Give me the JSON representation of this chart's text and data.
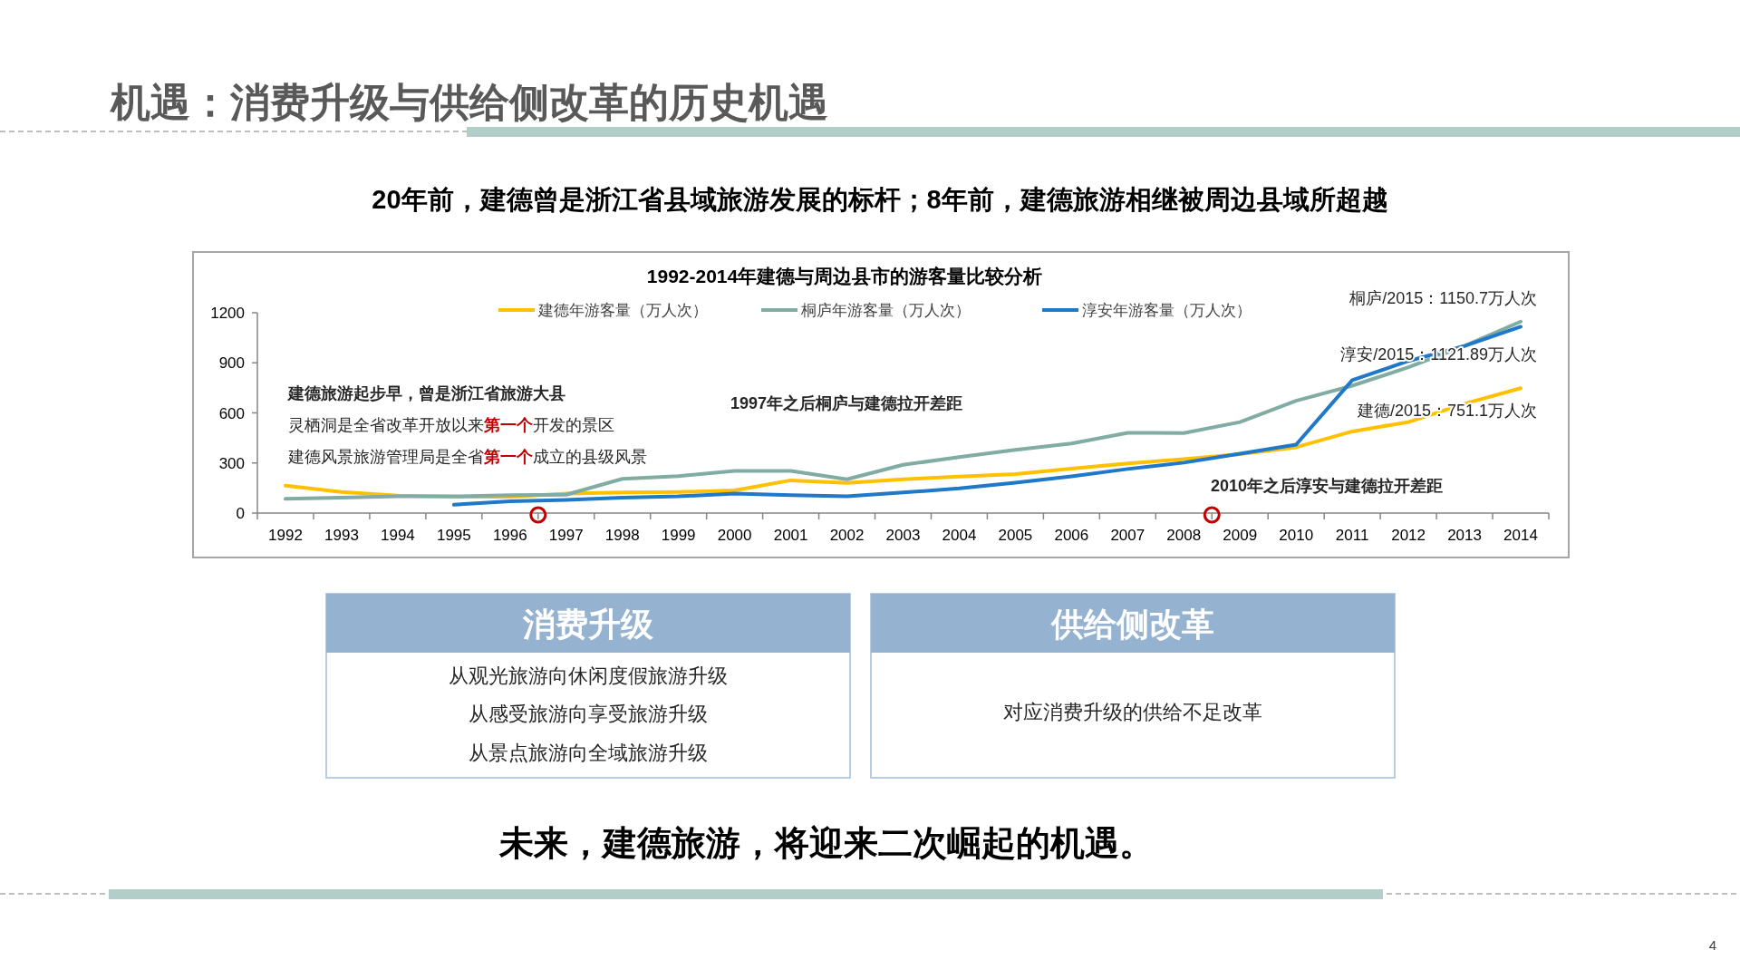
{
  "chart_data": {
    "type": "line",
    "title": "1992-2014年建德与周边县市的游客量比较分析",
    "subtitle": "20年前，建德曾是浙江省县域旅游发展的标杆；8年前，建德旅游相继被周边县域所超越",
    "categories": [
      "1992",
      "1993",
      "1994",
      "1995",
      "1996",
      "1997",
      "1998",
      "1999",
      "2000",
      "2001",
      "2002",
      "2003",
      "2004",
      "2005",
      "2006",
      "2007",
      "2008",
      "2009",
      "2010",
      "2011",
      "2012",
      "2013",
      "2014"
    ],
    "series": [
      {
        "name": "建德年游客量（万人次）",
        "color": "#ffc000",
        "values": [
          164,
          126,
          104,
          98,
          98,
          117,
          123,
          126,
          136,
          196,
          180,
          202,
          218,
          233,
          266,
          297,
          323,
          353,
          394,
          489,
          545,
          655,
          748
        ]
      },
      {
        "name": "桐庐年游客量（万人次）",
        "color": "#80aca4",
        "values": [
          85,
          92,
          100,
          100,
          107,
          110,
          205,
          221,
          253,
          253,
          202,
          289,
          335,
          379,
          417,
          481,
          479,
          545,
          673,
          763,
          873,
          1001,
          1147
        ]
      },
      {
        "name": "淳安年游客量（万人次）",
        "color": "#1f78c8",
        "values": [
          null,
          null,
          null,
          50,
          70,
          79,
          92,
          100,
          117,
          107,
          100,
          123,
          148,
          182,
          220,
          264,
          302,
          356,
          410,
          796,
          911,
          1001,
          1116
        ]
      }
    ],
    "ylim": [
      0,
      1200
    ],
    "yticks": [
      0,
      300,
      600,
      900,
      1200
    ],
    "grid": false,
    "legend": "top",
    "marker": "none",
    "line_style": "solid",
    "annotations": [
      "机遇：消费升级与供给侧改革的历史机遇",
      "建德旅游起步早，曾是浙江省旅游大县",
      "灵栖洞是全省改革开放以来**第一个**开发的景区",
      "建德风景旅游管理局是全省**第一个**成立的县级风景",
      "1997年之后桐庐与建德拉开差距",
      "2010年之后淳安与建德拉开差距",
      "桐庐/2015：1150.7万人次",
      "淳安/2015：1121.89万人次",
      "建德/2015：751.1万人次",
      "消费升级",
      "从观光旅游向休闲度假旅游升级",
      "从感受旅游向享受旅游升级",
      "从景点旅游向全域旅游升级",
      "供给侧改革",
      "对应消费升级的供给不足改革",
      "未来，建德旅游，将迎来二次崛起的机遇。",
      "4"
    ]
  }
}
